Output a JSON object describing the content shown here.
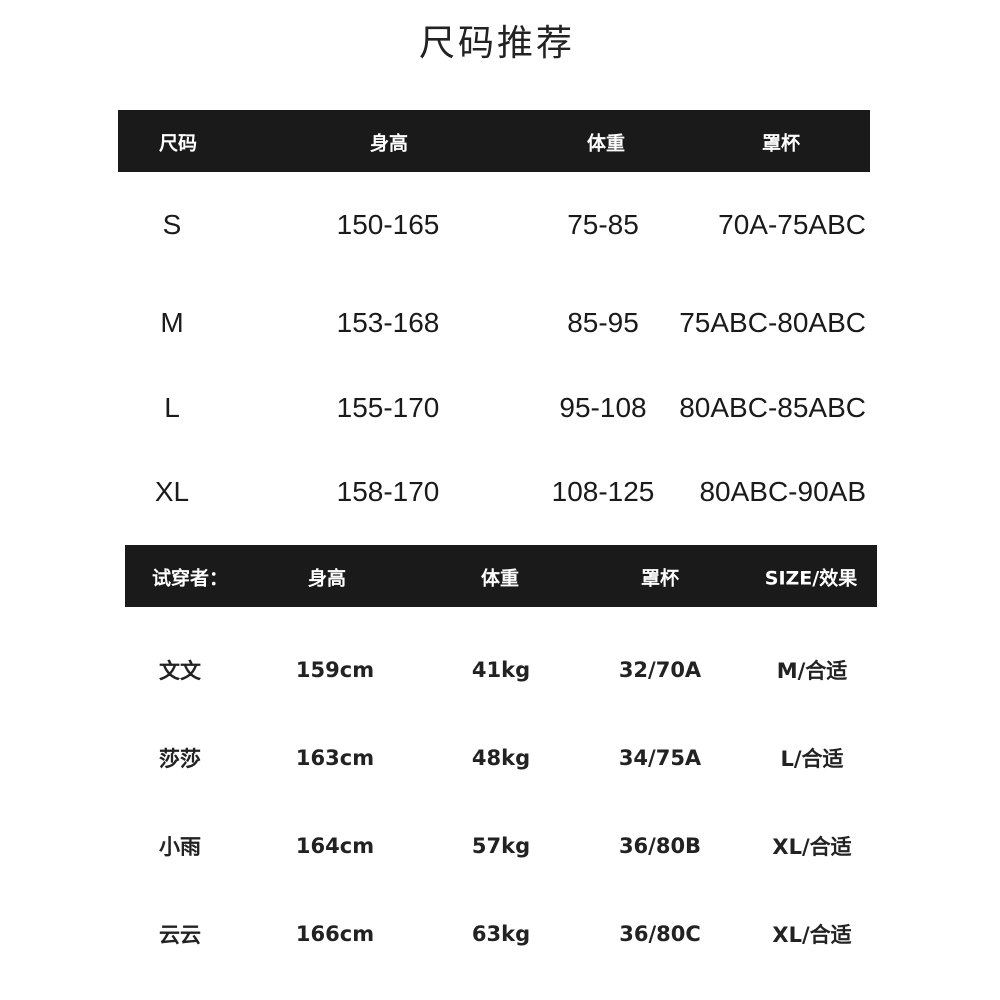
{
  "title": "尺码推荐",
  "size_table": {
    "headers": [
      "尺码",
      "身高",
      "体重",
      "罩杯"
    ],
    "rows": [
      [
        "S",
        "150-165",
        "75-85",
        "70A-75ABC"
      ],
      [
        "M",
        "153-168",
        "85-95",
        "75ABC-80ABC"
      ],
      [
        "L",
        "155-170",
        "95-108",
        "80ABC-85ABC"
      ],
      [
        "XL",
        "158-170",
        "108-125",
        "80ABC-90AB"
      ]
    ]
  },
  "tryon_table": {
    "headers": [
      "试穿者：",
      "身高",
      "体重",
      "罩杯",
      "SIZE/效果"
    ],
    "rows": [
      [
        "文文",
        "159cm",
        "41kg",
        "32/70A",
        "M/合适"
      ],
      [
        "莎莎",
        "163cm",
        "48kg",
        "34/75A",
        "L/合适"
      ],
      [
        "小雨",
        "164cm",
        "57kg",
        "36/80B",
        "XL/合适"
      ],
      [
        "云云",
        "166cm",
        "63kg",
        "36/80C",
        "XL/合适"
      ]
    ]
  }
}
